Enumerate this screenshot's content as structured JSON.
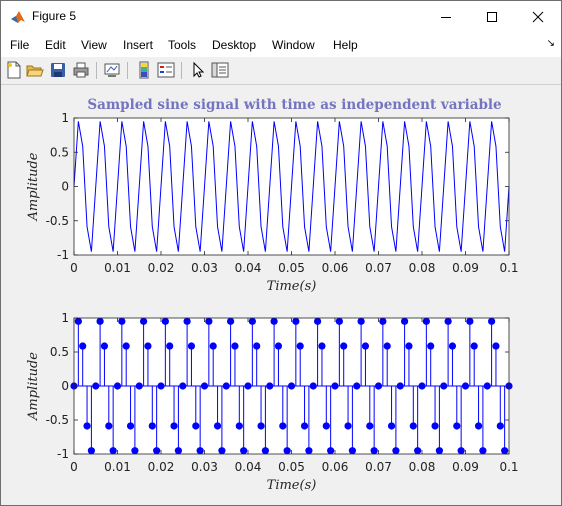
{
  "window": {
    "title": "Figure 5",
    "controls": {
      "minimize": "minimize-icon",
      "maximize": "maximize-icon",
      "close": "close-icon"
    }
  },
  "menu": [
    "File",
    "Edit",
    "View",
    "Insert",
    "Tools",
    "Desktop",
    "Window",
    "Help"
  ],
  "toolbar": [
    "new-figure-icon",
    "open-file-icon",
    "save-icon",
    "print-icon",
    "link-plot-icon",
    "colorbar-icon",
    "legend-icon",
    "pointer-icon",
    "property-editor-icon"
  ],
  "colors": {
    "signal": "#0000ff",
    "title": "#7474c0",
    "axes_bg": "#ffffff",
    "figure_bg": "#f0f0f0"
  },
  "chart_data": [
    {
      "type": "line",
      "title": "Sampled sine signal with time as independent variable",
      "xlabel": "Time(s)",
      "ylabel": "Amplitude",
      "xlim": [
        0,
        0.1
      ],
      "ylim": [
        -1,
        1
      ],
      "xticks": [
        "0",
        "0.01",
        "0.02",
        "0.03",
        "0.04",
        "0.05",
        "0.06",
        "0.07",
        "0.08",
        "0.09",
        "0.1"
      ],
      "yticks": [
        "-1",
        "-0.5",
        "0",
        "0.5",
        "1"
      ],
      "signal": {
        "frequency_hz": 200,
        "sample_interval_s": 0.001,
        "amplitude": 1,
        "t_start": 0,
        "t_end": 0.1
      }
    },
    {
      "type": "stem",
      "title": "",
      "xlabel": "Time(s)",
      "ylabel": "Amplitude",
      "xlim": [
        0,
        0.1
      ],
      "ylim": [
        -1,
        1
      ],
      "xticks": [
        "0",
        "0.01",
        "0.02",
        "0.03",
        "0.04",
        "0.05",
        "0.06",
        "0.07",
        "0.08",
        "0.09",
        "0.1"
      ],
      "yticks": [
        "-1",
        "-0.5",
        "0",
        "0.5",
        "1"
      ],
      "signal": {
        "frequency_hz": 200,
        "sample_interval_s": 0.001,
        "amplitude": 1,
        "t_start": 0,
        "t_end": 0.1
      }
    }
  ]
}
